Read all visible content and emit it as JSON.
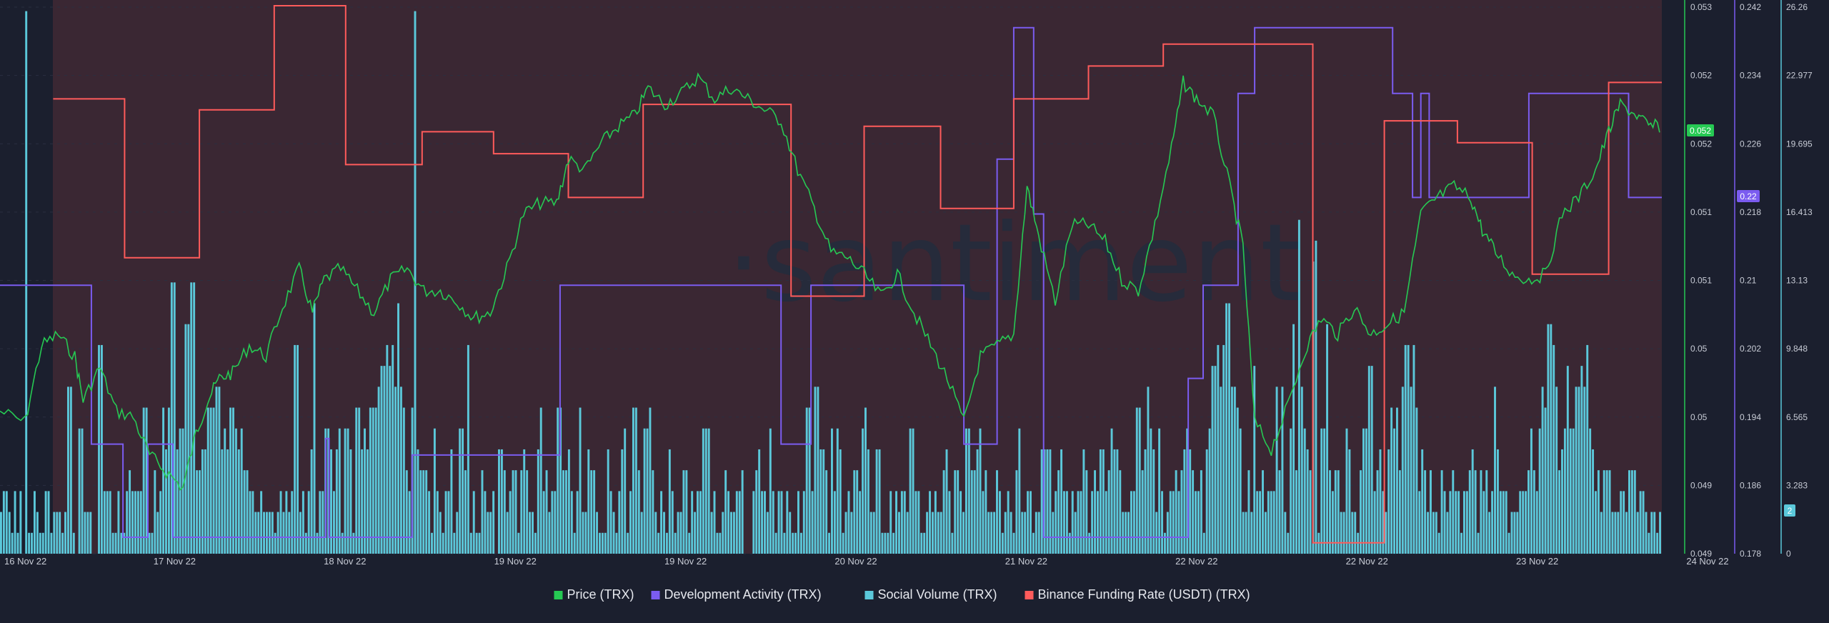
{
  "watermark": "·santiment",
  "chart_data": {
    "type": "line",
    "x_tick_labels": [
      "16 Nov 22",
      "17 Nov 22",
      "18 Nov 22",
      "19 Nov 22",
      "19 Nov 22",
      "20 Nov 22",
      "21 Nov 22",
      "22 Nov 22",
      "22 Nov 22",
      "23 Nov 22",
      "24 Nov 22"
    ],
    "axes": {
      "price": {
        "ticks": [
          "0.053",
          "0.052",
          "0.052",
          "0.051",
          "0.051",
          "0.05",
          "0.05",
          "0.049",
          "0.049"
        ],
        "current": "0.052",
        "color": "#26c953"
      },
      "dev_activity": {
        "ticks": [
          "0.242",
          "0.234",
          "0.226",
          "0.218",
          "0.21",
          "0.202",
          "0.194",
          "0.186",
          "0.178"
        ],
        "current": "0.22",
        "color": "#7b5cf0"
      },
      "social_volume": {
        "ticks": [
          "26.26",
          "22.977",
          "19.695",
          "16.413",
          "13.13",
          "9.848",
          "6.565",
          "3.283",
          "0"
        ],
        "current": "2",
        "ylim": [
          0,
          26.26
        ],
        "color": "#5bc8da"
      }
    },
    "legend_placement": "bottom-center",
    "legend": [
      {
        "label": "Price (TRX)",
        "color": "#26c953"
      },
      {
        "label": "Development Activity (TRX)",
        "color": "#7b5cf0"
      },
      {
        "label": "Social Volume (TRX)",
        "color": "#5bc8da"
      },
      {
        "label": "Binance Funding Rate (USDT) (TRX)",
        "color": "#ff5b5b"
      }
    ],
    "series": {
      "social_volume": [
        2,
        3,
        3,
        2,
        1,
        3,
        1,
        3,
        0,
        26,
        1,
        1,
        3,
        2,
        1,
        1,
        3,
        3,
        1,
        2,
        2,
        2,
        1,
        2,
        8,
        8,
        1,
        0,
        6,
        6,
        2,
        2,
        2,
        0,
        0,
        10,
        10,
        3,
        3,
        3,
        1,
        1,
        3,
        1,
        1,
        3,
        4,
        3,
        3,
        3,
        3,
        7,
        7,
        1,
        1,
        4,
        2,
        3,
        7,
        5,
        7,
        13,
        13,
        5,
        6,
        6,
        11,
        11,
        13,
        13,
        4,
        4,
        5,
        5,
        7,
        7,
        7,
        8,
        8,
        5,
        6,
        5,
        7,
        7,
        6,
        5,
        6,
        4,
        4,
        3,
        3,
        2,
        2,
        3,
        2,
        2,
        2,
        2,
        1,
        2,
        3,
        2,
        3,
        2,
        3,
        10,
        10,
        2,
        3,
        1,
        3,
        5,
        12,
        1,
        3,
        3,
        6,
        6,
        5,
        3,
        5,
        6,
        1,
        6,
        6,
        5,
        1,
        7,
        7,
        5,
        6,
        5,
        7,
        7,
        7,
        8,
        9,
        9,
        10,
        9,
        10,
        8,
        12,
        8,
        7,
        4,
        3,
        7,
        26,
        5,
        4,
        4,
        4,
        3,
        1,
        6,
        3,
        2,
        1,
        3,
        3,
        5,
        1,
        2,
        6,
        6,
        4,
        10,
        1,
        3,
        1,
        1,
        4,
        3,
        2,
        2,
        3,
        0,
        5,
        5,
        4,
        2,
        3,
        4,
        4,
        1,
        4,
        5,
        4,
        2,
        2,
        1,
        5,
        7,
        3,
        4,
        2,
        3,
        3,
        7,
        7,
        4,
        4,
        5,
        3,
        1,
        3,
        7,
        2,
        2,
        5,
        4,
        4,
        2,
        1,
        1,
        1,
        5,
        3,
        2,
        1,
        3,
        5,
        6,
        1,
        3,
        7,
        7,
        4,
        2,
        6,
        6,
        7,
        4,
        2,
        1,
        3,
        2,
        1,
        5,
        3,
        1,
        2,
        2,
        4,
        4,
        1,
        3,
        2,
        3,
        3,
        6,
        6,
        6,
        2,
        3,
        1,
        1,
        2,
        4,
        3,
        2,
        2,
        3,
        3,
        4,
        0,
        0,
        0,
        3,
        4,
        5,
        3,
        3,
        2,
        6,
        3,
        1,
        3,
        3,
        1,
        3,
        2,
        1,
        1,
        3,
        1,
        3,
        7,
        7,
        3,
        8,
        8,
        5,
        5,
        4,
        1,
        6,
        3,
        6,
        5,
        1,
        2,
        3,
        2,
        4,
        4,
        3,
        6,
        7,
        5,
        2,
        2,
        5,
        5,
        1,
        1,
        1,
        3,
        1,
        3,
        2,
        3,
        3,
        2,
        6,
        6,
        3,
        3,
        1,
        1,
        2,
        3,
        2,
        3,
        2,
        2,
        4,
        5,
        3,
        1,
        4,
        4,
        3,
        2,
        6,
        6,
        4,
        4,
        5,
        6,
        3,
        4,
        2,
        2,
        2,
        4,
        3,
        1,
        2,
        3,
        2,
        1,
        4,
        6,
        2,
        2,
        3,
        3,
        1,
        2,
        2,
        5,
        5,
        5,
        5,
        2,
        3,
        4,
        5,
        3,
        3,
        1,
        3,
        2,
        3,
        3,
        5,
        4,
        1,
        3,
        4,
        3,
        5,
        5,
        3,
        4,
        6,
        5,
        5,
        4,
        2,
        2,
        2,
        3,
        3,
        7,
        7,
        4,
        5,
        8,
        6,
        5,
        2,
        6,
        3,
        1,
        2,
        3,
        3,
        4,
        3,
        4,
        5,
        6,
        5,
        4,
        3,
        3,
        4,
        1,
        5,
        6,
        9,
        9,
        10,
        8,
        10,
        12,
        12,
        8,
        8,
        7,
        6,
        2,
        2,
        4,
        2,
        9,
        3,
        3,
        4,
        2,
        3,
        3,
        3,
        8,
        4,
        8,
        2,
        1,
        6,
        11,
        4,
        16,
        8,
        6,
        5,
        4,
        14,
        15,
        1,
        6,
        6,
        11,
        4,
        3,
        4,
        4,
        2,
        2,
        6,
        5,
        2,
        2,
        1,
        4,
        6,
        6,
        9,
        9,
        3,
        4,
        5,
        3,
        2,
        5,
        7,
        6,
        7,
        4,
        8,
        10,
        10,
        8,
        10,
        7,
        3,
        5,
        4,
        2,
        4,
        2,
        2,
        1,
        4,
        3,
        2,
        3,
        4,
        3,
        3,
        1,
        3,
        3,
        4,
        5,
        4,
        1,
        4,
        3,
        4,
        2,
        3,
        8,
        5,
        3,
        3,
        3,
        1,
        2,
        2,
        2,
        3,
        3,
        3,
        4,
        6,
        4,
        3,
        6,
        8,
        7,
        11,
        11,
        10,
        8,
        4,
        5,
        6,
        9,
        6,
        6,
        8,
        8,
        9,
        8,
        10,
        6,
        5,
        3,
        4,
        2,
        4,
        4,
        4,
        2,
        2,
        2,
        3,
        3,
        2,
        4,
        4,
        4,
        2,
        3,
        3,
        2,
        1,
        2,
        2,
        1,
        2
      ]
    }
  }
}
